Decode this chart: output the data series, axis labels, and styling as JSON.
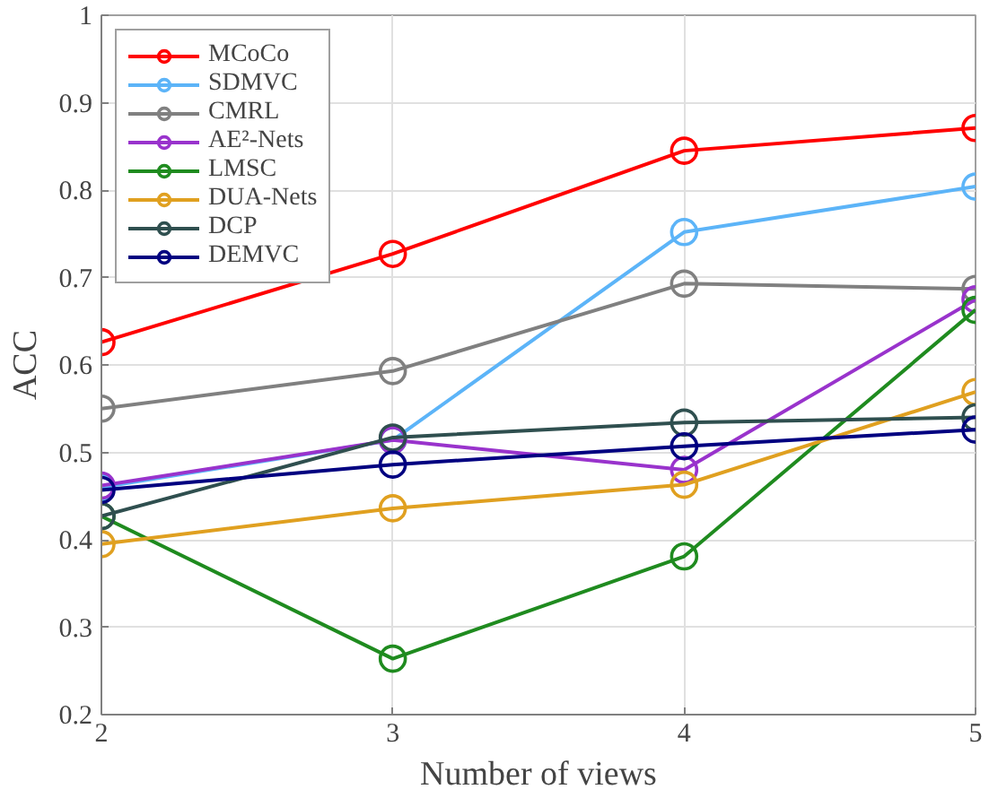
{
  "chart_data": {
    "type": "line",
    "xlabel": "Number of views",
    "ylabel": "ACC",
    "x": [
      2,
      3,
      4,
      5
    ],
    "xlim": [
      2,
      5
    ],
    "xticks": [
      2,
      3,
      4,
      5
    ],
    "ylim": [
      0.2,
      1
    ],
    "yticks": [
      0.2,
      0.3,
      0.4,
      0.5,
      0.6,
      0.7,
      0.8,
      0.9,
      1
    ],
    "grid": true,
    "legend": "top left",
    "marker": "circle",
    "line_style": "solid",
    "series": [
      {
        "name": "MCoCo",
        "color": "#ff0000",
        "values": [
          0.626,
          0.727,
          0.845,
          0.871
        ]
      },
      {
        "name": "SDMVC",
        "color": "#5cb4f8",
        "values": [
          0.46,
          0.514,
          0.752,
          0.804
        ]
      },
      {
        "name": "CMRL",
        "color": "#808080",
        "values": [
          0.55,
          0.593,
          0.693,
          0.687
        ]
      },
      {
        "name": "AE²-Nets",
        "color": "#9933cc",
        "values": [
          0.462,
          0.514,
          0.48,
          0.675
        ]
      },
      {
        "name": "LMSC",
        "color": "#1f8b1f",
        "values": [
          0.427,
          0.264,
          0.381,
          0.663
        ]
      },
      {
        "name": "DUA-Nets",
        "color": "#e0a020",
        "values": [
          0.395,
          0.436,
          0.463,
          0.569
        ]
      },
      {
        "name": "DCP",
        "color": "#2f4f4f",
        "values": [
          0.427,
          0.517,
          0.534,
          0.54
        ]
      },
      {
        "name": "DEMVC",
        "color": "#000080",
        "values": [
          0.457,
          0.486,
          0.507,
          0.526
        ]
      }
    ]
  }
}
